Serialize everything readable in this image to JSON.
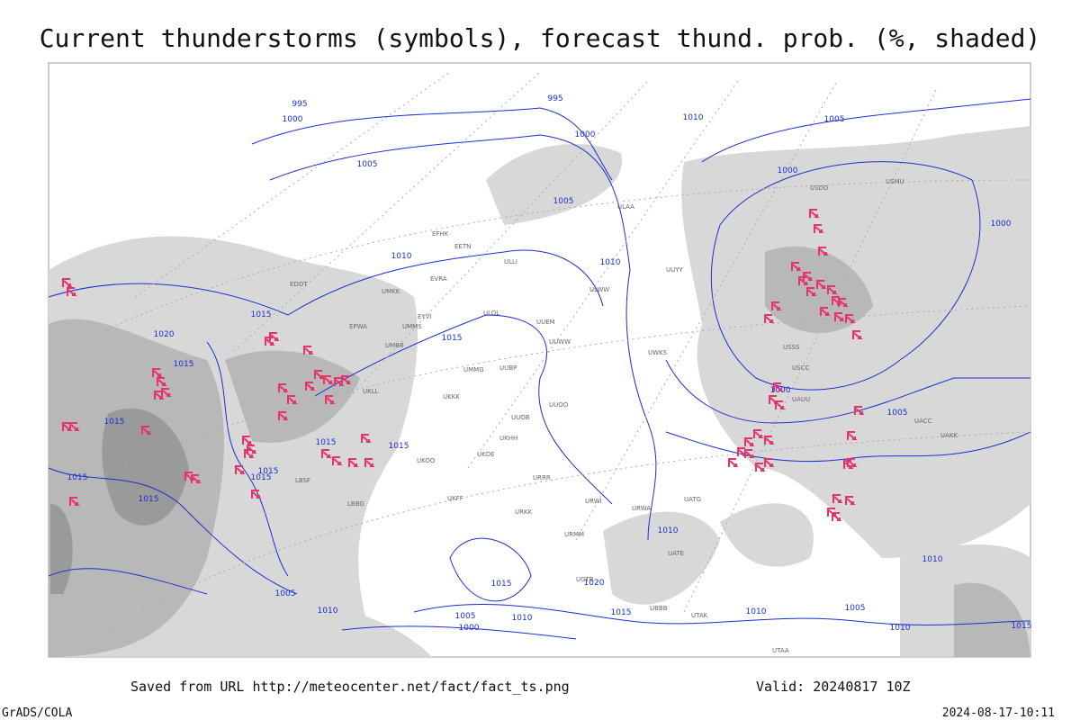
{
  "header": {
    "title": "Current thunderstorms (symbols), forecast thund. prob. (%, shaded)"
  },
  "map": {
    "isobar_labels": [
      "995",
      "1000",
      "995",
      "1000",
      "1010",
      "1005",
      "1005",
      "1005",
      "1000",
      "1000",
      "1010",
      "1010",
      "1015",
      "1020",
      "1015",
      "1015",
      "1000",
      "1005",
      "1015",
      "1015",
      "1015",
      "1015",
      "1015",
      "1015",
      "1015",
      "1010",
      "1015",
      "1020",
      "1010",
      "1005",
      "1010",
      "1015",
      "1005",
      "1010",
      "1000",
      "1010",
      "1005",
      "1010",
      "1015"
    ],
    "station_labels": [
      "ULAA",
      "ULLI",
      "ULOL",
      "UUEM",
      "UUWW",
      "UMMG",
      "UUBP",
      "UKKK",
      "UUOB",
      "UUOO",
      "UKHH",
      "UKDE",
      "UKOO",
      "URRR",
      "URWI",
      "URWA",
      "UATG",
      "USSS",
      "USCC",
      "UAUU",
      "UACC",
      "UAKK",
      "UATE",
      "UTAK",
      "UTAA",
      "USDD",
      "USMU",
      "UUYY",
      "UWKS",
      "ULWW",
      "EFHK",
      "EETN",
      "EVRA",
      "EYVI",
      "UMKK",
      "EDDT",
      "EPWA",
      "UMMS",
      "UMBB",
      "UKLL",
      "LBSF",
      "LBBG",
      "UKFF",
      "URKK",
      "URMM",
      "UGTB",
      "UBBB"
    ]
  },
  "footer": {
    "source": "Saved from URL http://meteocenter.net/fact/fact_ts.png",
    "valid": "Valid: 20240817 10Z",
    "credit": "GrADS/COLA",
    "timestamp": "2024-08-17-10:11"
  }
}
